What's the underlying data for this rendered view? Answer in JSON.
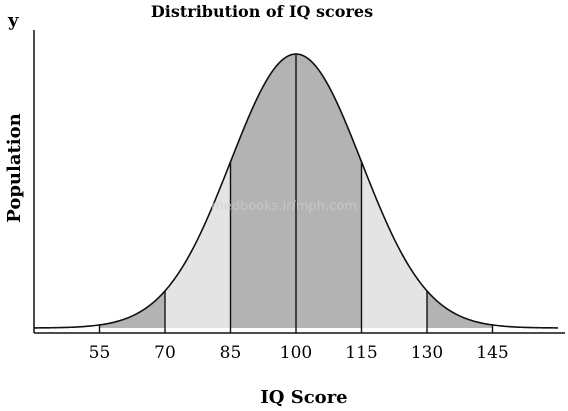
{
  "chart_data": {
    "type": "area",
    "title": "Distribution of IQ scores",
    "xlabel": "IQ Score",
    "ylabel": "Population",
    "y_axis_marker": "y",
    "x_ticks": [
      55,
      70,
      85,
      100,
      115,
      130,
      145
    ],
    "x_tick_labels": [
      "55",
      "70",
      "85",
      "100",
      "115",
      "130",
      "145"
    ],
    "distribution": {
      "kind": "normal",
      "mean": 100,
      "sd": 15
    },
    "xlim": [
      40,
      160
    ],
    "bands": [
      {
        "from": 55,
        "to": 70,
        "fill": "#b3b3b3"
      },
      {
        "from": 70,
        "to": 85,
        "fill": "#e4e4e4"
      },
      {
        "from": 85,
        "to": 100,
        "fill": "#b3b3b3"
      },
      {
        "from": 100,
        "to": 115,
        "fill": "#b3b3b3"
      },
      {
        "from": 115,
        "to": 130,
        "fill": "#e4e4e4"
      },
      {
        "from": 130,
        "to": 145,
        "fill": "#b3b3b3"
      }
    ],
    "dividers": [
      55,
      70,
      85,
      100,
      115,
      130,
      145
    ],
    "grid": false,
    "legend": "none",
    "colors": {
      "curve": "#111111",
      "dark_band": "#b3b3b3",
      "light_band": "#e4e4e4",
      "axis": "#111111"
    }
  },
  "watermark": "medbooks.ir/mph.com"
}
